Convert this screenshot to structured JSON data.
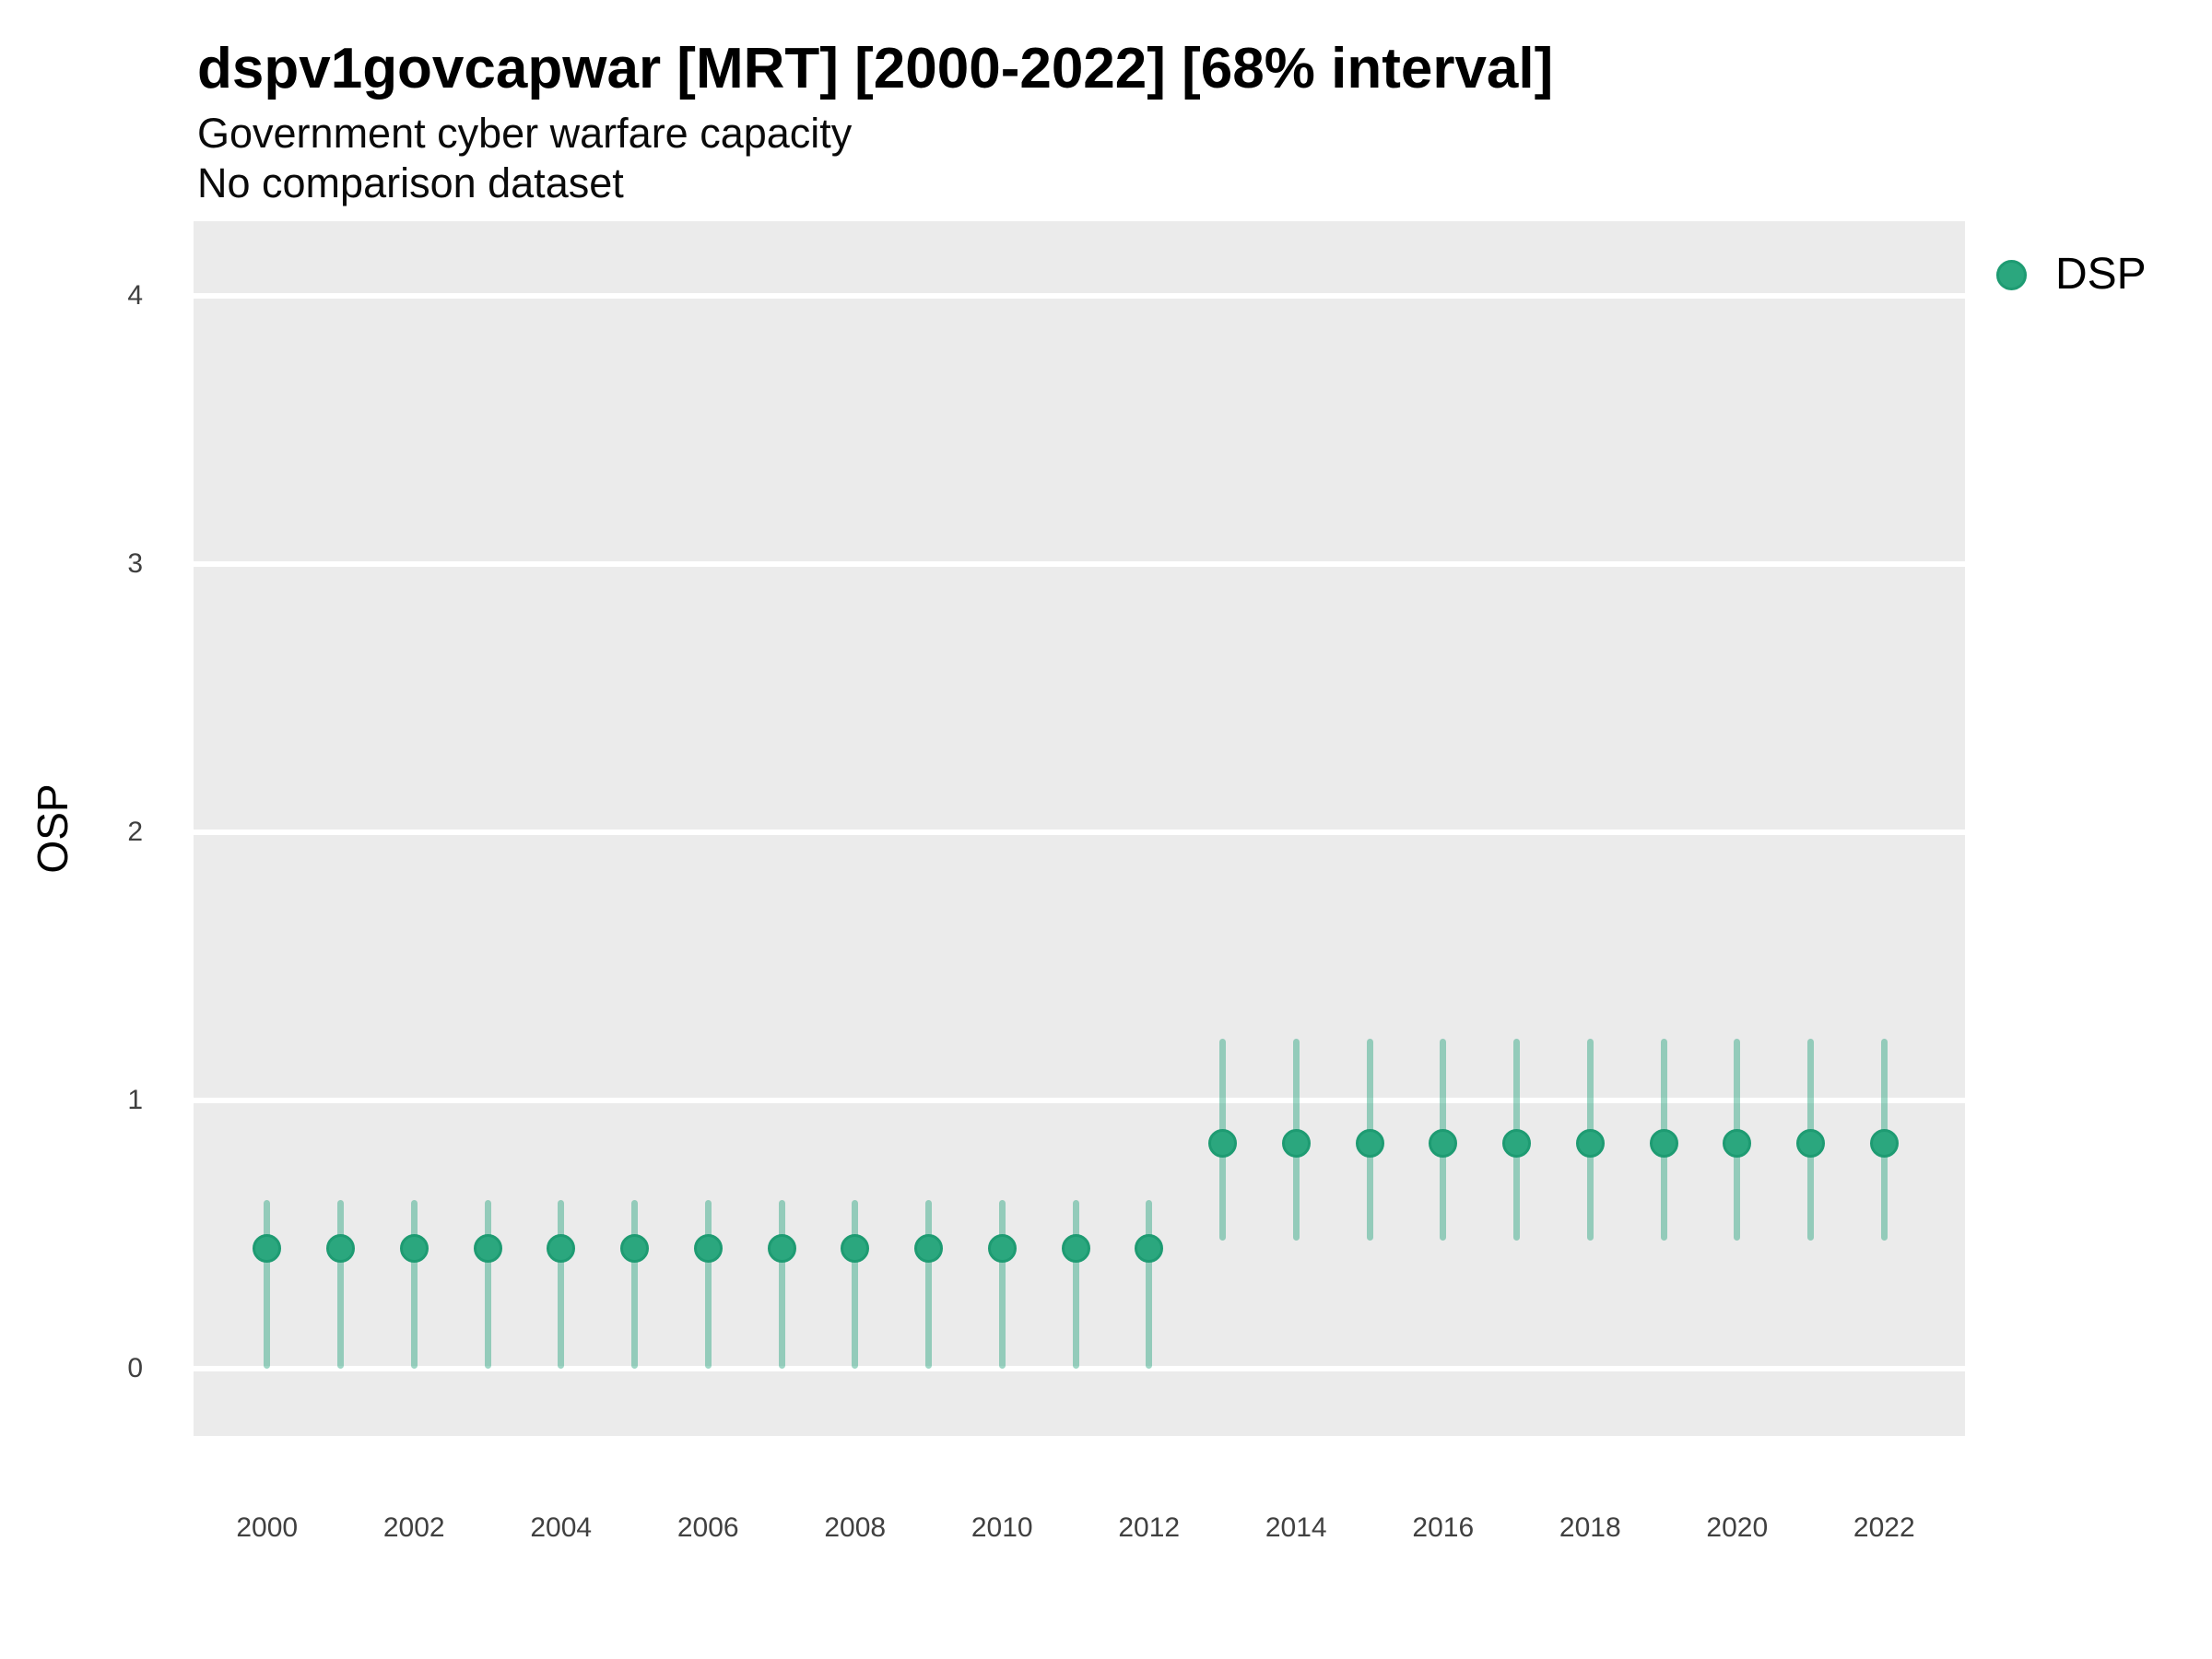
{
  "chart_data": {
    "type": "pointrange",
    "title": "dspv1govcapwar [MRT] [2000-2022] [68% interval]",
    "subtitle": "Government cyber warfare capacity",
    "note": "No comparison dataset",
    "ylabel": "OSP",
    "xlabel": "",
    "interval_label": "68% interval",
    "xlim": [
      1999.0,
      2023.1
    ],
    "ylim": [
      -0.25,
      4.28
    ],
    "y_ticks": [
      0,
      1,
      2,
      3,
      4
    ],
    "x_ticks": [
      2000,
      2002,
      2004,
      2006,
      2008,
      2010,
      2012,
      2014,
      2016,
      2018,
      2020,
      2022
    ],
    "grid": "major-horizontal",
    "legend_position": "right",
    "colors": {
      "panel_bg": "#EBEBEB",
      "gridline": "#FFFFFF",
      "point_fill": "#2BA77E",
      "point_stroke": "#1E9B72",
      "interval_line": "rgba(43,166,128,0.46)",
      "tick_text": "#404040"
    },
    "legend": {
      "entries": [
        {
          "label": "DSP",
          "color": "#2BA77E"
        }
      ]
    },
    "series": [
      {
        "name": "DSP",
        "points": [
          {
            "year": 2000,
            "est": 0.45,
            "lo": 0.0,
            "hi": 0.63
          },
          {
            "year": 2001,
            "est": 0.45,
            "lo": 0.0,
            "hi": 0.63
          },
          {
            "year": 2002,
            "est": 0.45,
            "lo": 0.0,
            "hi": 0.63
          },
          {
            "year": 2003,
            "est": 0.45,
            "lo": 0.0,
            "hi": 0.63
          },
          {
            "year": 2004,
            "est": 0.45,
            "lo": 0.0,
            "hi": 0.63
          },
          {
            "year": 2005,
            "est": 0.45,
            "lo": 0.0,
            "hi": 0.63
          },
          {
            "year": 2006,
            "est": 0.45,
            "lo": 0.0,
            "hi": 0.63
          },
          {
            "year": 2007,
            "est": 0.45,
            "lo": 0.0,
            "hi": 0.63
          },
          {
            "year": 2008,
            "est": 0.45,
            "lo": 0.0,
            "hi": 0.63
          },
          {
            "year": 2009,
            "est": 0.45,
            "lo": 0.0,
            "hi": 0.63
          },
          {
            "year": 2010,
            "est": 0.45,
            "lo": 0.0,
            "hi": 0.63
          },
          {
            "year": 2011,
            "est": 0.45,
            "lo": 0.0,
            "hi": 0.63
          },
          {
            "year": 2012,
            "est": 0.45,
            "lo": 0.0,
            "hi": 0.63
          },
          {
            "year": 2013,
            "est": 0.84,
            "lo": 0.48,
            "hi": 1.23
          },
          {
            "year": 2014,
            "est": 0.84,
            "lo": 0.48,
            "hi": 1.23
          },
          {
            "year": 2015,
            "est": 0.84,
            "lo": 0.48,
            "hi": 1.23
          },
          {
            "year": 2016,
            "est": 0.84,
            "lo": 0.48,
            "hi": 1.23
          },
          {
            "year": 2017,
            "est": 0.84,
            "lo": 0.48,
            "hi": 1.23
          },
          {
            "year": 2018,
            "est": 0.84,
            "lo": 0.48,
            "hi": 1.23
          },
          {
            "year": 2019,
            "est": 0.84,
            "lo": 0.48,
            "hi": 1.23
          },
          {
            "year": 2020,
            "est": 0.84,
            "lo": 0.48,
            "hi": 1.23
          },
          {
            "year": 2021,
            "est": 0.84,
            "lo": 0.48,
            "hi": 1.23
          },
          {
            "year": 2022,
            "est": 0.84,
            "lo": 0.48,
            "hi": 1.23
          }
        ]
      }
    ]
  }
}
